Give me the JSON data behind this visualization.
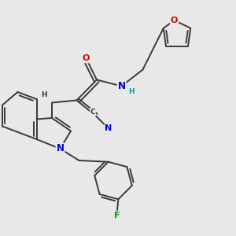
{
  "bg_color": "#e8e8e8",
  "bond_color": "#3a3a3a",
  "bond_width": 1.4,
  "atom_colors": {
    "O": "#dd0000",
    "N": "#0000cc",
    "F": "#009900",
    "C": "#3a3a3a",
    "H": "#009999"
  },
  "font_size": 7.5
}
